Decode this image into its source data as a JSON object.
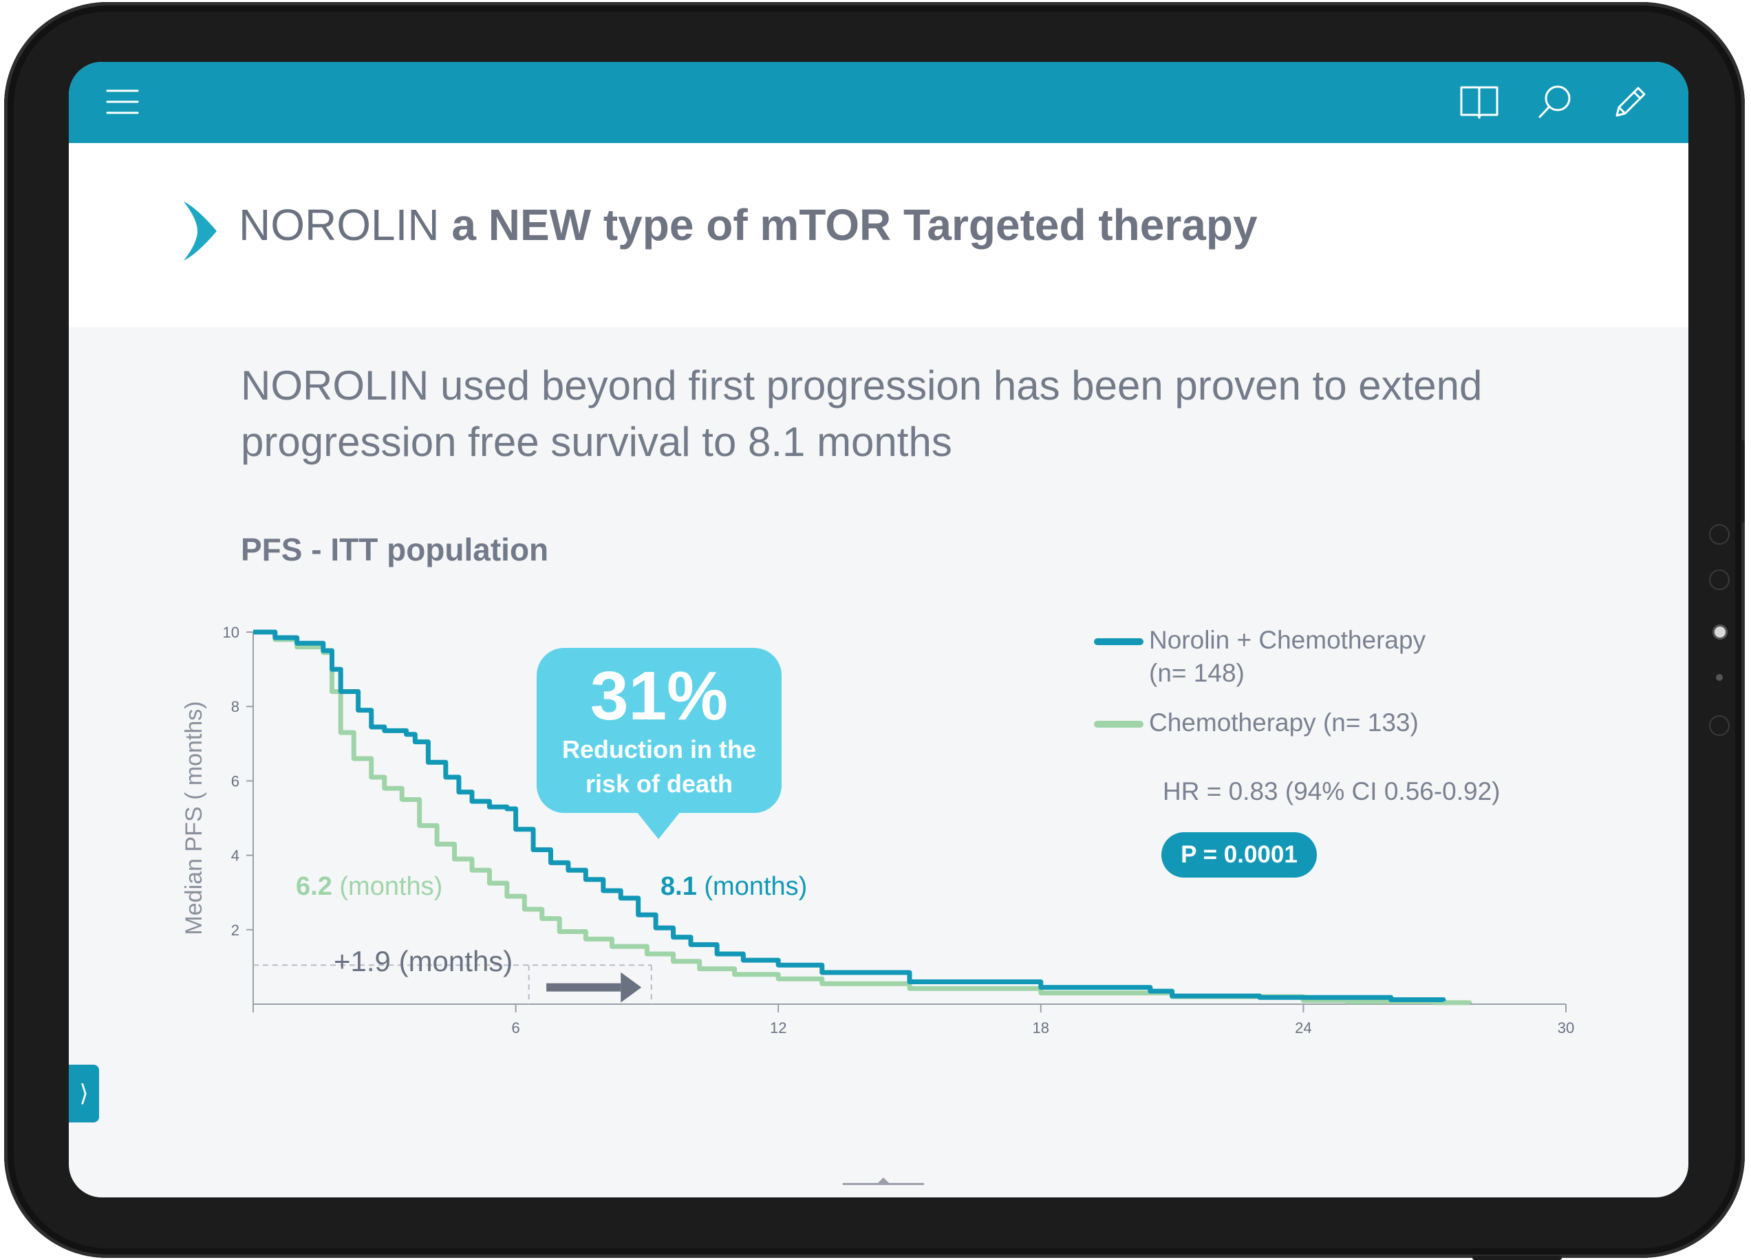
{
  "topbar": {
    "menu_icon": "hamburger-menu-icon",
    "actions": [
      "book-icon",
      "search-icon",
      "pencil-icon"
    ],
    "color": "#1298b6"
  },
  "header": {
    "brand": "NOROLIN",
    "title_rest": "a NEW type of mTOR Targeted therapy",
    "accent_color": "#1ea8c4"
  },
  "headline": {
    "brand": "NOROLIN",
    "text": "used beyond first progression has been proven to extend progression free survival to 8.1 months"
  },
  "subhead": "PFS - ITT population",
  "callout": {
    "value": "31%",
    "text_line1": "Reduction in the",
    "text_line2": "risk of death",
    "color": "#5fd2ea"
  },
  "annotations": {
    "chemo_median_value": "6.2",
    "chemo_median_unit": "(months)",
    "norolin_median_value": "8.1",
    "norolin_median_unit": "(months)",
    "gain": "+1.9 (months)"
  },
  "stats": {
    "hr": "HR = 0.83 (94% CI 0.56-0.92)",
    "p_value": "P = 0.0001"
  },
  "chart_data": {
    "type": "line",
    "title": "PFS - ITT population",
    "xlabel": "",
    "ylabel": "Median PFS ( months)",
    "xlim": [
      0,
      30
    ],
    "ylim": [
      0,
      10
    ],
    "x_ticks": [
      6,
      12,
      18,
      24,
      30
    ],
    "y_ticks": [
      2,
      4,
      6,
      8,
      10
    ],
    "grid": false,
    "legend_position": "top-right",
    "series": [
      {
        "name": "Norolin + Chemotherapy (n= 148)",
        "legend_line1": "Norolin + Chemotherapy",
        "legend_line2": "(n= 148)",
        "color": "#1298b6",
        "x": [
          0,
          0.5,
          1,
          1.6,
          1.8,
          2,
          2.4,
          2.7,
          3,
          3.5,
          3.7,
          4.0,
          4.4,
          4.7,
          5.0,
          5.4,
          5.8,
          6.0,
          6.4,
          6.8,
          7.2,
          7.6,
          8.0,
          8.4,
          8.8,
          9.2,
          9.6,
          10.0,
          10.6,
          11.2,
          12.0,
          13.0,
          15.0,
          18.0,
          20.5,
          21.0,
          23.0,
          26.0,
          27.2
        ],
        "y": [
          10,
          9.85,
          9.7,
          9.5,
          9.0,
          8.4,
          7.9,
          7.45,
          7.35,
          7.25,
          7.05,
          6.5,
          6.1,
          5.7,
          5.45,
          5.3,
          5.25,
          4.7,
          4.15,
          3.8,
          3.6,
          3.35,
          3.05,
          2.85,
          2.4,
          2.05,
          1.8,
          1.6,
          1.35,
          1.18,
          1.05,
          0.85,
          0.6,
          0.45,
          0.35,
          0.22,
          0.18,
          0.12,
          0.08
        ]
      },
      {
        "name": "Chemotherapy (n= 133)",
        "legend_line1": "Chemotherapy (n= 133)",
        "color": "#9fd4a8",
        "x": [
          0,
          0.5,
          1,
          1.6,
          1.8,
          2,
          2.3,
          2.7,
          3,
          3.4,
          3.8,
          4.2,
          4.6,
          5.0,
          5.4,
          5.8,
          6.2,
          6.6,
          7.0,
          7.6,
          8.2,
          9.0,
          9.6,
          10.2,
          11.0,
          12.0,
          13.0,
          15.0,
          18.0,
          21.0,
          24.0,
          25.0,
          27.0,
          27.8
        ],
        "y": [
          10,
          9.8,
          9.6,
          9.45,
          8.4,
          7.3,
          6.6,
          6.1,
          5.8,
          5.5,
          4.8,
          4.3,
          3.9,
          3.6,
          3.25,
          2.9,
          2.55,
          2.3,
          1.95,
          1.75,
          1.55,
          1.35,
          1.15,
          0.95,
          0.8,
          0.68,
          0.55,
          0.42,
          0.3,
          0.2,
          0.1,
          0.07,
          0.04,
          0.02
        ]
      }
    ],
    "annotations": [
      {
        "text": "6.2 (months)",
        "x": 6.2
      },
      {
        "text": "8.1 (months)",
        "x": 9.1
      },
      {
        "text": "+1.9 (months)"
      }
    ]
  }
}
